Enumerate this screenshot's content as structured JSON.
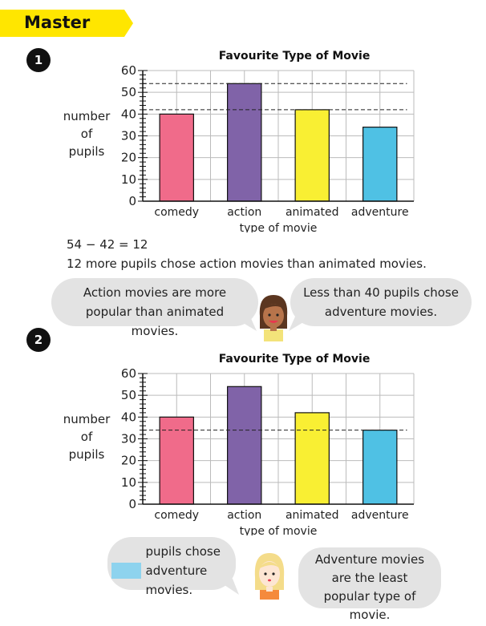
{
  "header": {
    "title": "Master"
  },
  "questions": [
    {
      "number": "1"
    },
    {
      "number": "2"
    }
  ],
  "chart_data": [
    {
      "type": "bar",
      "title": "Favourite Type of Movie",
      "categories": [
        "comedy",
        "action",
        "animated",
        "adventure"
      ],
      "values": [
        40,
        54,
        42,
        34
      ],
      "colors": [
        "#f06b8a",
        "#8063a8",
        "#f9ef33",
        "#4fc1e4"
      ],
      "xlabel": "type of movie",
      "ylabel_lines": [
        "number",
        "of",
        "pupils"
      ],
      "ylim": [
        0,
        60
      ],
      "yticks": [
        0,
        10,
        20,
        30,
        40,
        50,
        60
      ],
      "minor_tick_step": 2,
      "grid": true,
      "reference_lines": [
        54,
        42
      ]
    },
    {
      "type": "bar",
      "title": "Favourite Type of Movie",
      "categories": [
        "comedy",
        "action",
        "animated",
        "adventure"
      ],
      "values": [
        40,
        54,
        42,
        34
      ],
      "colors": [
        "#f06b8a",
        "#8063a8",
        "#f9ef33",
        "#4fc1e4"
      ],
      "xlabel": "type of movie",
      "ylabel_lines": [
        "number",
        "of",
        "pupils"
      ],
      "ylim": [
        0,
        60
      ],
      "yticks": [
        0,
        10,
        20,
        30,
        40,
        50,
        60
      ],
      "minor_tick_step": 2,
      "grid": true,
      "reference_lines": [
        34
      ]
    }
  ],
  "q1": {
    "working": "54 − 42 = 12",
    "sentence": "12 more pupils chose action movies than animated movies.",
    "bubble_left": "Action movies are more popular than animated movies.",
    "bubble_right": "Less than 40 pupils chose adventure movies."
  },
  "q2": {
    "bubble_left": "pupils chose adventure movies.",
    "bubble_right": "Adventure movies are the least popular type of movie."
  },
  "colors": {
    "banner": "#ffe600",
    "answer_box": "#8ed3ee",
    "bubble": "#e3e3e3"
  }
}
